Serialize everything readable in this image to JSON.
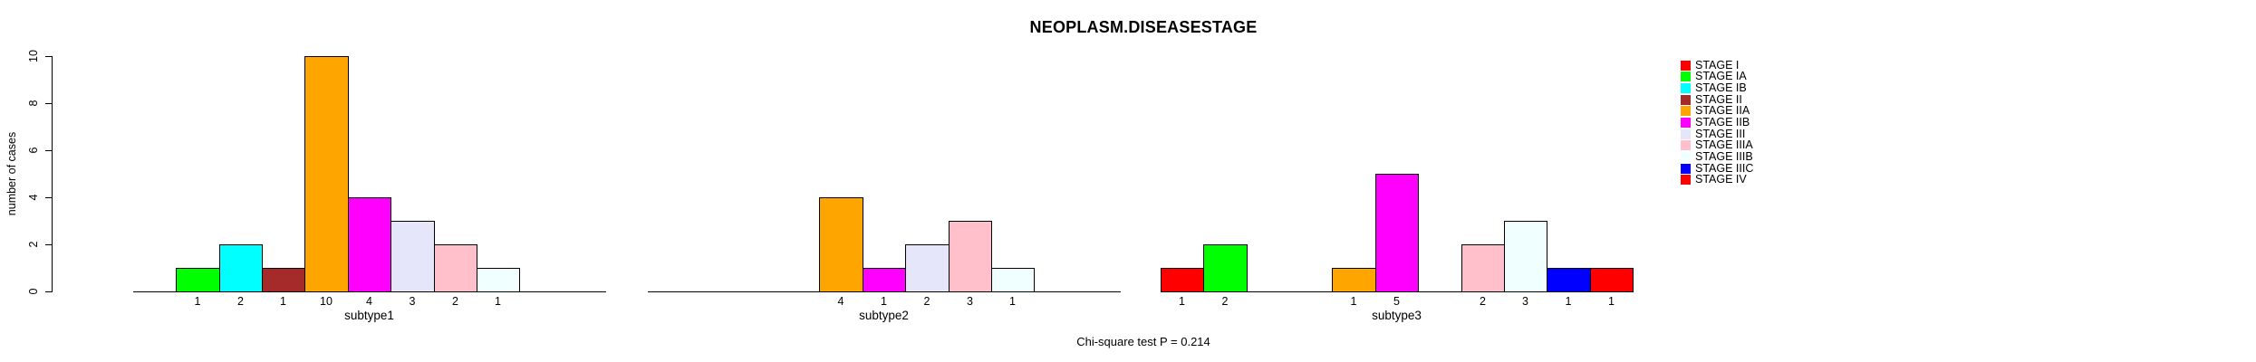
{
  "title": "NEOPLASM.DISEASESTAGE",
  "footnote": "Chi-square test P = 0.214",
  "ylabel": "number of cases",
  "chart_data": {
    "type": "bar",
    "title": "NEOPLASM.DISEASESTAGE",
    "ylabel": "number of cases",
    "ylim": [
      0,
      10
    ],
    "yticks": [
      0,
      2,
      4,
      6,
      8,
      10
    ],
    "annotation": "Chi-square test P = 0.214",
    "legend_position": "right",
    "grid": false,
    "stages": [
      {
        "label": "STAGE I",
        "color": "#FF0000"
      },
      {
        "label": "STAGE IA",
        "color": "#00FF00"
      },
      {
        "label": "STAGE IB",
        "color": "#00FFFF"
      },
      {
        "label": "STAGE II",
        "color": "#A52A2A"
      },
      {
        "label": "STAGE IIA",
        "color": "#FFA500"
      },
      {
        "label": "STAGE IIB",
        "color": "#FF00FF"
      },
      {
        "label": "STAGE III",
        "color": "#E6E6FA"
      },
      {
        "label": "STAGE IIIA",
        "color": "#FFC0CB"
      },
      {
        "label": "STAGE IIIB",
        "color": "#F0FFFF"
      },
      {
        "label": "STAGE IIIC",
        "color": "#0000FF"
      },
      {
        "label": "STAGE IV",
        "color": "#FF0000"
      }
    ],
    "subplots": [
      {
        "xlabel": "subtype1",
        "bars": [
          {
            "stage": "STAGE IA",
            "value": 1
          },
          {
            "stage": "STAGE IB",
            "value": 2
          },
          {
            "stage": "STAGE II",
            "value": 1
          },
          {
            "stage": "STAGE IIA",
            "value": 10
          },
          {
            "stage": "STAGE IIB",
            "value": 4
          },
          {
            "stage": "STAGE III",
            "value": 3
          },
          {
            "stage": "STAGE IIIA",
            "value": 2
          },
          {
            "stage": "STAGE IIIB",
            "value": 1
          }
        ]
      },
      {
        "xlabel": "subtype2",
        "bars": [
          {
            "stage": "STAGE IIA",
            "value": 4
          },
          {
            "stage": "STAGE IIB",
            "value": 1
          },
          {
            "stage": "STAGE III",
            "value": 2
          },
          {
            "stage": "STAGE IIIA",
            "value": 3
          },
          {
            "stage": "STAGE IIIB",
            "value": 1
          }
        ]
      },
      {
        "xlabel": "subtype3",
        "bars": [
          {
            "stage": "STAGE I",
            "value": 1
          },
          {
            "stage": "STAGE IA",
            "value": 2
          },
          {
            "stage": "STAGE IIA",
            "value": 1
          },
          {
            "stage": "STAGE IIB",
            "value": 5
          },
          {
            "stage": "STAGE IIIA",
            "value": 2
          },
          {
            "stage": "STAGE IIIB",
            "value": 3
          },
          {
            "stage": "STAGE IIIC",
            "value": 1
          },
          {
            "stage": "STAGE IV",
            "value": 1
          }
        ]
      }
    ]
  }
}
